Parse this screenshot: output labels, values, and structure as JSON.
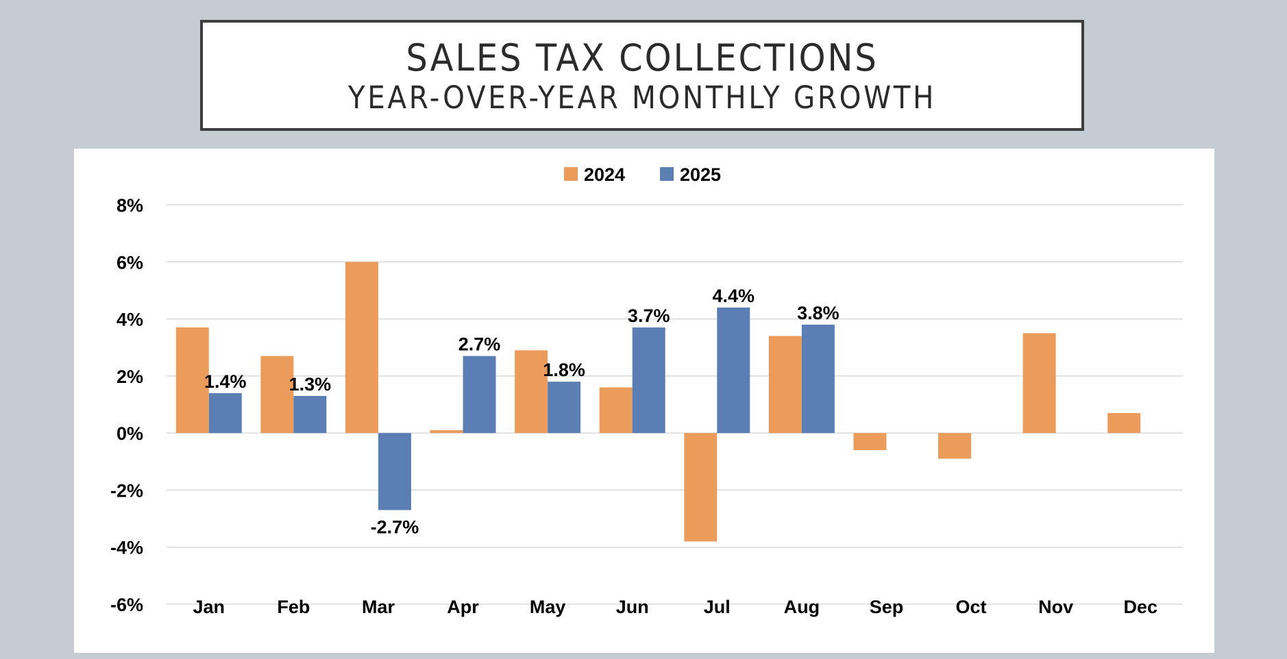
{
  "title": {
    "main": "SALES TAX COLLECTIONS",
    "sub": "YEAR-OVER-YEAR MONTHLY GROWTH"
  },
  "chart_data": {
    "type": "bar",
    "title": "Sales Tax Collections — Year-over-Year Monthly Growth",
    "xlabel": "",
    "ylabel": "",
    "categories": [
      "Jan",
      "Feb",
      "Mar",
      "Apr",
      "May",
      "Jun",
      "Jul",
      "Aug",
      "Sep",
      "Oct",
      "Nov",
      "Dec"
    ],
    "series": [
      {
        "name": "2024",
        "color": "#eb9b5a",
        "values": [
          3.7,
          2.7,
          6.0,
          0.1,
          2.9,
          1.6,
          -3.8,
          3.4,
          -0.6,
          -0.9,
          3.5,
          0.7
        ],
        "data_labels": [
          null,
          null,
          null,
          null,
          null,
          null,
          null,
          null,
          null,
          null,
          null,
          null
        ]
      },
      {
        "name": "2025",
        "color": "#5b7fb5",
        "values": [
          1.4,
          1.3,
          -2.7,
          2.7,
          1.8,
          3.7,
          4.4,
          3.8,
          null,
          null,
          null,
          null
        ],
        "data_labels": [
          "1.4%",
          "1.3%",
          "-2.7%",
          "2.7%",
          "1.8%",
          "3.7%",
          "4.4%",
          "3.8%",
          null,
          null,
          null,
          null
        ]
      }
    ],
    "ylim": [
      -6,
      8
    ],
    "yticks": [
      8,
      6,
      4,
      2,
      0,
      -2,
      -4,
      -6
    ],
    "ytick_labels": [
      "8%",
      "6%",
      "4%",
      "2%",
      "0%",
      "-2%",
      "-4%",
      "-6%"
    ],
    "grid": true,
    "legend_position": "top-center",
    "unit": "%"
  }
}
